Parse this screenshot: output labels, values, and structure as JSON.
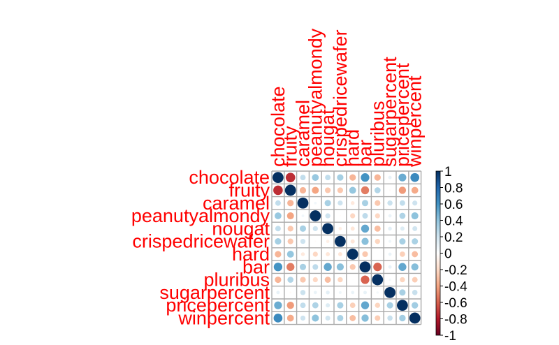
{
  "chart_data": {
    "type": "heatmap",
    "variables": [
      "chocolate",
      "fruity",
      "caramel",
      "peanutyalmondy",
      "nougat",
      "crispedricewafer",
      "hard",
      "bar",
      "pluribus",
      "sugarpercent",
      "pricepercent",
      "winpercent"
    ],
    "matrix": [
      [
        1.0,
        -0.74,
        0.25,
        0.38,
        0.25,
        0.34,
        -0.34,
        0.6,
        -0.34,
        0.1,
        0.5,
        0.64
      ],
      [
        -0.74,
        1.0,
        -0.34,
        -0.4,
        -0.27,
        -0.27,
        0.39,
        -0.52,
        0.3,
        -0.03,
        -0.43,
        -0.38
      ],
      [
        0.25,
        -0.34,
        1.0,
        0.06,
        0.33,
        0.21,
        -0.12,
        0.33,
        -0.27,
        0.22,
        0.25,
        0.21
      ],
      [
        0.38,
        -0.4,
        0.06,
        1.0,
        0.21,
        -0.02,
        -0.21,
        0.26,
        -0.21,
        0.09,
        0.31,
        0.41
      ],
      [
        0.25,
        -0.27,
        0.33,
        0.21,
        1.0,
        -0.09,
        -0.14,
        0.52,
        -0.31,
        0.12,
        0.15,
        0.2
      ],
      [
        0.34,
        -0.27,
        0.21,
        -0.02,
        -0.09,
        1.0,
        -0.14,
        0.42,
        -0.22,
        0.07,
        0.33,
        0.32
      ],
      [
        -0.34,
        0.39,
        -0.12,
        -0.21,
        -0.14,
        -0.14,
        1.0,
        -0.27,
        0.01,
        0.09,
        -0.24,
        -0.31
      ],
      [
        0.6,
        -0.52,
        0.33,
        0.26,
        0.52,
        0.42,
        -0.27,
        1.0,
        -0.59,
        0.1,
        0.52,
        0.43
      ],
      [
        -0.34,
        0.3,
        -0.27,
        -0.21,
        -0.31,
        -0.22,
        0.01,
        -0.59,
        1.0,
        0.05,
        -0.22,
        -0.25
      ],
      [
        0.1,
        -0.03,
        0.22,
        0.09,
        0.12,
        0.07,
        0.09,
        0.1,
        0.05,
        1.0,
        0.33,
        0.23
      ],
      [
        0.5,
        -0.43,
        0.25,
        0.31,
        0.15,
        0.33,
        -0.24,
        0.52,
        -0.22,
        0.33,
        1.0,
        0.35
      ],
      [
        0.64,
        -0.38,
        0.21,
        0.41,
        0.2,
        0.32,
        -0.31,
        0.43,
        -0.25,
        0.23,
        0.35,
        1.0
      ]
    ],
    "legend": {
      "range": [
        -1,
        1
      ],
      "ticks": [
        "1",
        "0.8",
        "0.6",
        "0.4",
        "0.2",
        "0",
        "-0.2",
        "-0.4",
        "-0.6",
        "-0.8",
        "-1"
      ],
      "placement": "right"
    },
    "colors": {
      "label": "#ff0000",
      "grid": "#aaaaaa",
      "scale": [
        "#67001F",
        "#B2182B",
        "#D6604D",
        "#F4A582",
        "#FDDBC7",
        "#FFFFFF",
        "#D1E5F0",
        "#92C5DE",
        "#4393C3",
        "#2166AC",
        "#053061"
      ]
    }
  }
}
